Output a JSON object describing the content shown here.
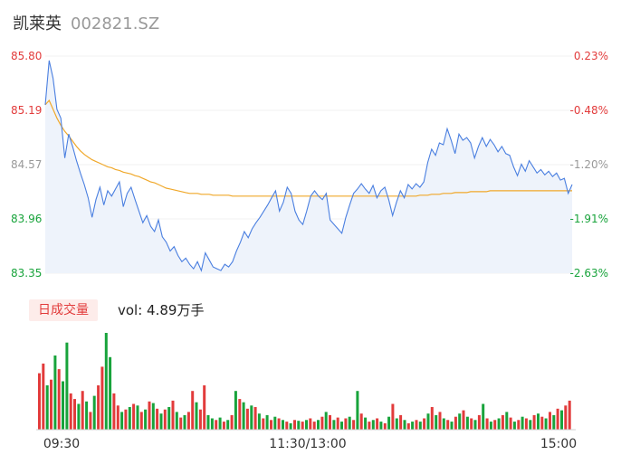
{
  "header": {
    "name": "凯莱英",
    "code": "002821.SZ"
  },
  "volume_panel": {
    "period_button": "日成交量",
    "vol_label": "vol: 4.89万手"
  },
  "chart_data": {
    "type": "line",
    "title": "",
    "y_ticks_left": [
      "85.80",
      "85.19",
      "84.57",
      "83.96",
      "83.35"
    ],
    "y_ticks_right": [
      "0.23%",
      "-0.48%",
      "-1.20%",
      "-1.91%",
      "-2.63%"
    ],
    "x_ticks": [
      "09:30",
      "11:30/13:00",
      "15:00"
    ],
    "ylim": [
      83.35,
      85.8
    ],
    "colors": {
      "up": "#e23b3b",
      "down": "#18a33b",
      "price": "#4a7fe0",
      "avg": "#f0a82a",
      "flat": "#999999"
    },
    "series": [
      {
        "values": [
          85.25,
          85.75,
          85.55,
          85.2,
          85.1,
          84.65,
          84.92,
          84.78,
          84.62,
          84.48,
          84.35,
          84.2,
          83.98,
          84.18,
          84.32,
          84.12,
          84.28,
          84.22,
          84.3,
          84.38,
          84.1,
          84.25,
          84.32,
          84.18,
          84.05,
          83.92,
          84.0,
          83.88,
          83.82,
          83.95,
          83.76,
          83.7,
          83.6,
          83.65,
          83.55,
          83.48,
          83.52,
          83.45,
          83.4,
          83.48,
          83.38,
          83.58,
          83.5,
          83.42,
          83.4,
          83.38,
          83.45,
          83.42,
          83.48,
          83.6,
          83.7,
          83.82,
          83.75,
          83.85,
          83.92,
          83.98,
          84.05,
          84.12,
          84.2,
          84.28,
          84.05,
          84.15,
          84.32,
          84.25,
          84.05,
          83.95,
          83.9,
          84.05,
          84.22,
          84.28,
          84.22,
          84.18,
          84.25,
          83.95,
          83.9,
          83.85,
          83.8,
          83.98,
          84.12,
          84.25,
          84.3,
          84.36,
          84.3,
          84.25,
          84.34,
          84.2,
          84.28,
          84.32,
          84.18,
          84.0,
          84.15,
          84.28,
          84.2,
          84.35,
          84.3,
          84.36,
          84.32,
          84.38,
          84.6,
          84.75,
          84.68,
          84.82,
          84.8,
          84.98,
          84.85,
          84.7,
          84.92,
          84.85,
          84.88,
          84.82,
          84.65,
          84.78,
          84.88,
          84.78,
          84.86,
          84.8,
          84.72,
          84.78,
          84.7,
          84.68,
          84.55,
          84.45,
          84.58,
          84.5,
          84.62,
          84.55,
          84.48,
          84.52,
          84.46,
          84.5,
          84.44,
          84.48,
          84.4,
          84.42,
          84.25,
          84.35
        ]
      }
    ],
    "avg_values": [
      85.25,
      85.3,
      85.2,
      85.1,
      85.02,
      84.95,
      84.9,
      84.84,
      84.78,
      84.73,
      84.69,
      84.66,
      84.63,
      84.61,
      84.59,
      84.57,
      84.55,
      84.54,
      84.52,
      84.51,
      84.49,
      84.48,
      84.47,
      84.45,
      84.44,
      84.42,
      84.4,
      84.38,
      84.37,
      84.35,
      84.33,
      84.31,
      84.3,
      84.29,
      84.28,
      84.27,
      84.26,
      84.25,
      84.25,
      84.25,
      84.24,
      84.24,
      84.24,
      84.23,
      84.23,
      84.23,
      84.23,
      84.23,
      84.22,
      84.22,
      84.22,
      84.22,
      84.22,
      84.22,
      84.22,
      84.22,
      84.22,
      84.22,
      84.22,
      84.22,
      84.22,
      84.22,
      84.22,
      84.22,
      84.22,
      84.22,
      84.22,
      84.22,
      84.22,
      84.22,
      84.22,
      84.22,
      84.22,
      84.22,
      84.22,
      84.22,
      84.22,
      84.22,
      84.22,
      84.22,
      84.22,
      84.22,
      84.22,
      84.22,
      84.22,
      84.22,
      84.22,
      84.22,
      84.22,
      84.22,
      84.22,
      84.22,
      84.22,
      84.22,
      84.22,
      84.22,
      84.23,
      84.23,
      84.23,
      84.24,
      84.24,
      84.24,
      84.25,
      84.25,
      84.25,
      84.26,
      84.26,
      84.26,
      84.26,
      84.27,
      84.27,
      84.27,
      84.27,
      84.27,
      84.28,
      84.28,
      84.28,
      84.28,
      84.28,
      84.28,
      84.28,
      84.28,
      84.28,
      84.28,
      84.28,
      84.28,
      84.28,
      84.28,
      84.28,
      84.28,
      84.28,
      84.28,
      84.28,
      84.28,
      84.28,
      84.28
    ],
    "volume_bars": [
      [
        70,
        1
      ],
      [
        82,
        1
      ],
      [
        55,
        0
      ],
      [
        62,
        1
      ],
      [
        92,
        0
      ],
      [
        75,
        1
      ],
      [
        60,
        0
      ],
      [
        108,
        0
      ],
      [
        45,
        1
      ],
      [
        38,
        1
      ],
      [
        32,
        0
      ],
      [
        48,
        1
      ],
      [
        35,
        0
      ],
      [
        22,
        1
      ],
      [
        42,
        0
      ],
      [
        55,
        1
      ],
      [
        78,
        1
      ],
      [
        120,
        0
      ],
      [
        90,
        0
      ],
      [
        45,
        1
      ],
      [
        30,
        1
      ],
      [
        22,
        0
      ],
      [
        25,
        1
      ],
      [
        28,
        0
      ],
      [
        32,
        1
      ],
      [
        30,
        0
      ],
      [
        22,
        1
      ],
      [
        25,
        0
      ],
      [
        35,
        1
      ],
      [
        33,
        0
      ],
      [
        26,
        1
      ],
      [
        20,
        0
      ],
      [
        25,
        1
      ],
      [
        28,
        0
      ],
      [
        36,
        1
      ],
      [
        22,
        0
      ],
      [
        15,
        1
      ],
      [
        18,
        0
      ],
      [
        22,
        1
      ],
      [
        48,
        1
      ],
      [
        34,
        0
      ],
      [
        25,
        1
      ],
      [
        55,
        1
      ],
      [
        18,
        0
      ],
      [
        14,
        0
      ],
      [
        12,
        1
      ],
      [
        15,
        0
      ],
      [
        10,
        1
      ],
      [
        12,
        0
      ],
      [
        18,
        1
      ],
      [
        48,
        0
      ],
      [
        38,
        1
      ],
      [
        34,
        0
      ],
      [
        26,
        1
      ],
      [
        30,
        0
      ],
      [
        28,
        1
      ],
      [
        20,
        0
      ],
      [
        14,
        1
      ],
      [
        18,
        0
      ],
      [
        12,
        1
      ],
      [
        16,
        0
      ],
      [
        14,
        1
      ],
      [
        12,
        0
      ],
      [
        10,
        1
      ],
      [
        8,
        0
      ],
      [
        12,
        1
      ],
      [
        11,
        0
      ],
      [
        10,
        1
      ],
      [
        12,
        0
      ],
      [
        14,
        1
      ],
      [
        10,
        1
      ],
      [
        12,
        0
      ],
      [
        16,
        1
      ],
      [
        22,
        0
      ],
      [
        18,
        1
      ],
      [
        12,
        0
      ],
      [
        15,
        1
      ],
      [
        10,
        0
      ],
      [
        14,
        1
      ],
      [
        16,
        0
      ],
      [
        12,
        1
      ],
      [
        48,
        0
      ],
      [
        20,
        1
      ],
      [
        15,
        0
      ],
      [
        10,
        1
      ],
      [
        12,
        0
      ],
      [
        14,
        1
      ],
      [
        10,
        0
      ],
      [
        8,
        1
      ],
      [
        16,
        0
      ],
      [
        32,
        1
      ],
      [
        14,
        0
      ],
      [
        18,
        1
      ],
      [
        12,
        0
      ],
      [
        8,
        1
      ],
      [
        10,
        0
      ],
      [
        12,
        1
      ],
      [
        10,
        0
      ],
      [
        14,
        1
      ],
      [
        20,
        0
      ],
      [
        28,
        1
      ],
      [
        18,
        0
      ],
      [
        22,
        1
      ],
      [
        14,
        0
      ],
      [
        12,
        1
      ],
      [
        10,
        0
      ],
      [
        16,
        1
      ],
      [
        20,
        0
      ],
      [
        24,
        1
      ],
      [
        16,
        0
      ],
      [
        14,
        1
      ],
      [
        12,
        0
      ],
      [
        18,
        1
      ],
      [
        32,
        0
      ],
      [
        14,
        1
      ],
      [
        10,
        0
      ],
      [
        12,
        1
      ],
      [
        14,
        0
      ],
      [
        18,
        1
      ],
      [
        22,
        0
      ],
      [
        15,
        1
      ],
      [
        10,
        0
      ],
      [
        12,
        1
      ],
      [
        16,
        0
      ],
      [
        14,
        1
      ],
      [
        12,
        0
      ],
      [
        18,
        1
      ],
      [
        20,
        0
      ],
      [
        16,
        1
      ],
      [
        14,
        0
      ],
      [
        22,
        1
      ],
      [
        18,
        0
      ],
      [
        26,
        1
      ],
      [
        24,
        0
      ],
      [
        30,
        1
      ],
      [
        36,
        1
      ]
    ]
  }
}
